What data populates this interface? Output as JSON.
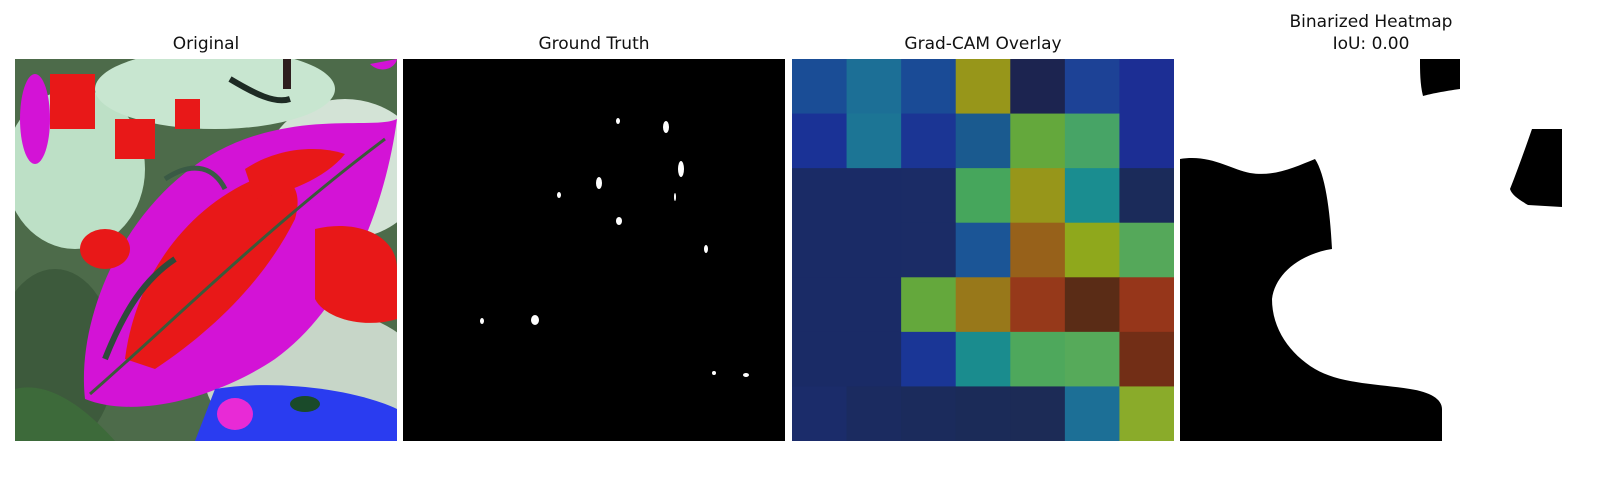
{
  "panels": [
    {
      "title": "Original"
    },
    {
      "title": "Ground Truth"
    },
    {
      "title": "Grad-CAM Overlay"
    },
    {
      "title_line1": "Binarized Heatmap",
      "title_line2": "IoU: 0.00"
    }
  ],
  "gradcam_grid_colors": [
    [
      "#1a4d96",
      "#1c6f96",
      "#1a4b96",
      "#97961a",
      "#1c2450",
      "#1d4296",
      "#1c2e94"
    ],
    [
      "#1a3296",
      "#1c7595",
      "#1b3594",
      "#1a5a8f",
      "#64a83c",
      "#47a466",
      "#1c2e94"
    ],
    [
      "#1a2b66",
      "#1a2b66",
      "#1b2c66",
      "#46a65c",
      "#97961a",
      "#1a8d90",
      "#1b2b5a"
    ],
    [
      "#1a2b66",
      "#1a2b66",
      "#1b2c66",
      "#1b5596",
      "#97611a",
      "#8fa81c",
      "#55a85a"
    ],
    [
      "#1a2b66",
      "#1a2b66",
      "#64a83c",
      "#98781a",
      "#96391a",
      "#5a2c16",
      "#96361a"
    ],
    [
      "#1a2b66",
      "#1a2b66",
      "#1a3696",
      "#1a8c8e",
      "#4ea85c",
      "#56aa5a",
      "#722e16"
    ],
    [
      "#1b2c6a",
      "#1b2b60",
      "#1b2b5c",
      "#1b2b58",
      "#1c2b56",
      "#1c6f96",
      "#8aab2a"
    ]
  ]
}
